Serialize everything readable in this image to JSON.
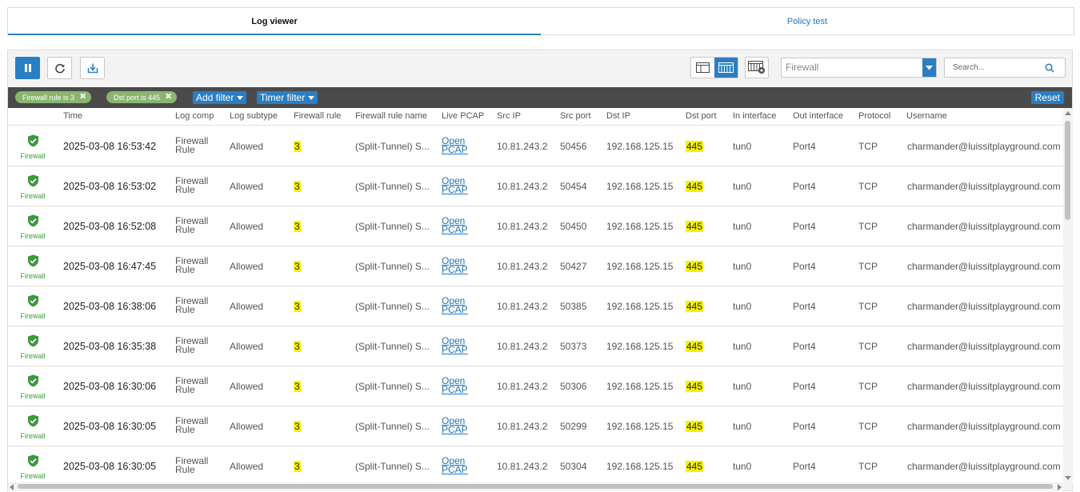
{
  "tabs": [
    {
      "label": "Log viewer",
      "active": true
    },
    {
      "label": "Policy test",
      "active": false
    }
  ],
  "toolbar": {
    "pause_icon": "pause-icon",
    "refresh_icon": "refresh-icon",
    "export_icon": "export-icon",
    "view_icons": [
      "detailed-view-icon",
      "grid-view-icon",
      "add-column-icon"
    ],
    "module_select": {
      "value": "Firewall"
    },
    "search": {
      "placeholder": "Search..."
    }
  },
  "filters": {
    "chips": [
      {
        "label": "Firewall rule is 3"
      },
      {
        "label": "Dst port is 445"
      }
    ],
    "add_filter_label": "Add filter",
    "timer_filter_label": "Timer filter",
    "reset_label": "Reset"
  },
  "colors": {
    "accent": "#2a7fc4",
    "chip": "#8ab571",
    "highlight": "#f7f300",
    "firewall_icon": "#3b9a3b"
  },
  "columns": [
    "Time",
    "Log comp",
    "Log subtype",
    "Firewall rule",
    "Firewall rule name",
    "Live PCAP",
    "Src IP",
    "Src port",
    "Dst IP",
    "Dst port",
    "In interface",
    "Out interface",
    "Protocol",
    "Username"
  ],
  "rows": [
    {
      "badge": "Firewall",
      "time": "2025-03-08 16:53:42",
      "log_comp_1": "Firewall",
      "log_comp_2": "Rule",
      "subtype": "Allowed",
      "rule": "3",
      "rule_name": "(Split-Tunnel) S...",
      "pcap_1": "Open",
      "pcap_2": "PCAP",
      "src_ip": "10.81.243.2",
      "src_port": "50456",
      "dst_ip": "192.168.125.15",
      "dst_port": "445",
      "in_if": "tun0",
      "out_if": "Port4",
      "protocol": "TCP",
      "username": "charmander@luissitplayground.com"
    },
    {
      "badge": "Firewall",
      "time": "2025-03-08 16:53:02",
      "log_comp_1": "Firewall",
      "log_comp_2": "Rule",
      "subtype": "Allowed",
      "rule": "3",
      "rule_name": "(Split-Tunnel) S...",
      "pcap_1": "Open",
      "pcap_2": "PCAP",
      "src_ip": "10.81.243.2",
      "src_port": "50454",
      "dst_ip": "192.168.125.15",
      "dst_port": "445",
      "in_if": "tun0",
      "out_if": "Port4",
      "protocol": "TCP",
      "username": "charmander@luissitplayground.com"
    },
    {
      "badge": "Firewall",
      "time": "2025-03-08 16:52:08",
      "log_comp_1": "Firewall",
      "log_comp_2": "Rule",
      "subtype": "Allowed",
      "rule": "3",
      "rule_name": "(Split-Tunnel) S...",
      "pcap_1": "Open",
      "pcap_2": "PCAP",
      "src_ip": "10.81.243.2",
      "src_port": "50450",
      "dst_ip": "192.168.125.15",
      "dst_port": "445",
      "in_if": "tun0",
      "out_if": "Port4",
      "protocol": "TCP",
      "username": "charmander@luissitplayground.com"
    },
    {
      "badge": "Firewall",
      "time": "2025-03-08 16:47:45",
      "log_comp_1": "Firewall",
      "log_comp_2": "Rule",
      "subtype": "Allowed",
      "rule": "3",
      "rule_name": "(Split-Tunnel) S...",
      "pcap_1": "Open",
      "pcap_2": "PCAP",
      "src_ip": "10.81.243.2",
      "src_port": "50427",
      "dst_ip": "192.168.125.15",
      "dst_port": "445",
      "in_if": "tun0",
      "out_if": "Port4",
      "protocol": "TCP",
      "username": "charmander@luissitplayground.com"
    },
    {
      "badge": "Firewall",
      "time": "2025-03-08 16:38:06",
      "log_comp_1": "Firewall",
      "log_comp_2": "Rule",
      "subtype": "Allowed",
      "rule": "3",
      "rule_name": "(Split-Tunnel) S...",
      "pcap_1": "Open",
      "pcap_2": "PCAP",
      "src_ip": "10.81.243.2",
      "src_port": "50385",
      "dst_ip": "192.168.125.15",
      "dst_port": "445",
      "in_if": "tun0",
      "out_if": "Port4",
      "protocol": "TCP",
      "username": "charmander@luissitplayground.com"
    },
    {
      "badge": "Firewall",
      "time": "2025-03-08 16:35:38",
      "log_comp_1": "Firewall",
      "log_comp_2": "Rule",
      "subtype": "Allowed",
      "rule": "3",
      "rule_name": "(Split-Tunnel) S...",
      "pcap_1": "Open",
      "pcap_2": "PCAP",
      "src_ip": "10.81.243.2",
      "src_port": "50373",
      "dst_ip": "192.168.125.15",
      "dst_port": "445",
      "in_if": "tun0",
      "out_if": "Port4",
      "protocol": "TCP",
      "username": "charmander@luissitplayground.com"
    },
    {
      "badge": "Firewall",
      "time": "2025-03-08 16:30:06",
      "log_comp_1": "Firewall",
      "log_comp_2": "Rule",
      "subtype": "Allowed",
      "rule": "3",
      "rule_name": "(Split-Tunnel) S...",
      "pcap_1": "Open",
      "pcap_2": "PCAP",
      "src_ip": "10.81.243.2",
      "src_port": "50306",
      "dst_ip": "192.168.125.15",
      "dst_port": "445",
      "in_if": "tun0",
      "out_if": "Port4",
      "protocol": "TCP",
      "username": "charmander@luissitplayground.com"
    },
    {
      "badge": "Firewall",
      "time": "2025-03-08 16:30:05",
      "log_comp_1": "Firewall",
      "log_comp_2": "Rule",
      "subtype": "Allowed",
      "rule": "3",
      "rule_name": "(Split-Tunnel) S...",
      "pcap_1": "Open",
      "pcap_2": "PCAP",
      "src_ip": "10.81.243.2",
      "src_port": "50299",
      "dst_ip": "192.168.125.15",
      "dst_port": "445",
      "in_if": "tun0",
      "out_if": "Port4",
      "protocol": "TCP",
      "username": "charmander@luissitplayground.com"
    },
    {
      "badge": "Firewall",
      "time": "2025-03-08 16:30:05",
      "log_comp_1": "Firewall",
      "log_comp_2": "Rule",
      "subtype": "Allowed",
      "rule": "3",
      "rule_name": "(Split-Tunnel) S...",
      "pcap_1": "Open",
      "pcap_2": "PCAP",
      "src_ip": "10.81.243.2",
      "src_port": "50304",
      "dst_ip": "192.168.125.15",
      "dst_port": "445",
      "in_if": "tun0",
      "out_if": "Port4",
      "protocol": "TCP",
      "username": "charmander@luissitplayground.com"
    }
  ]
}
